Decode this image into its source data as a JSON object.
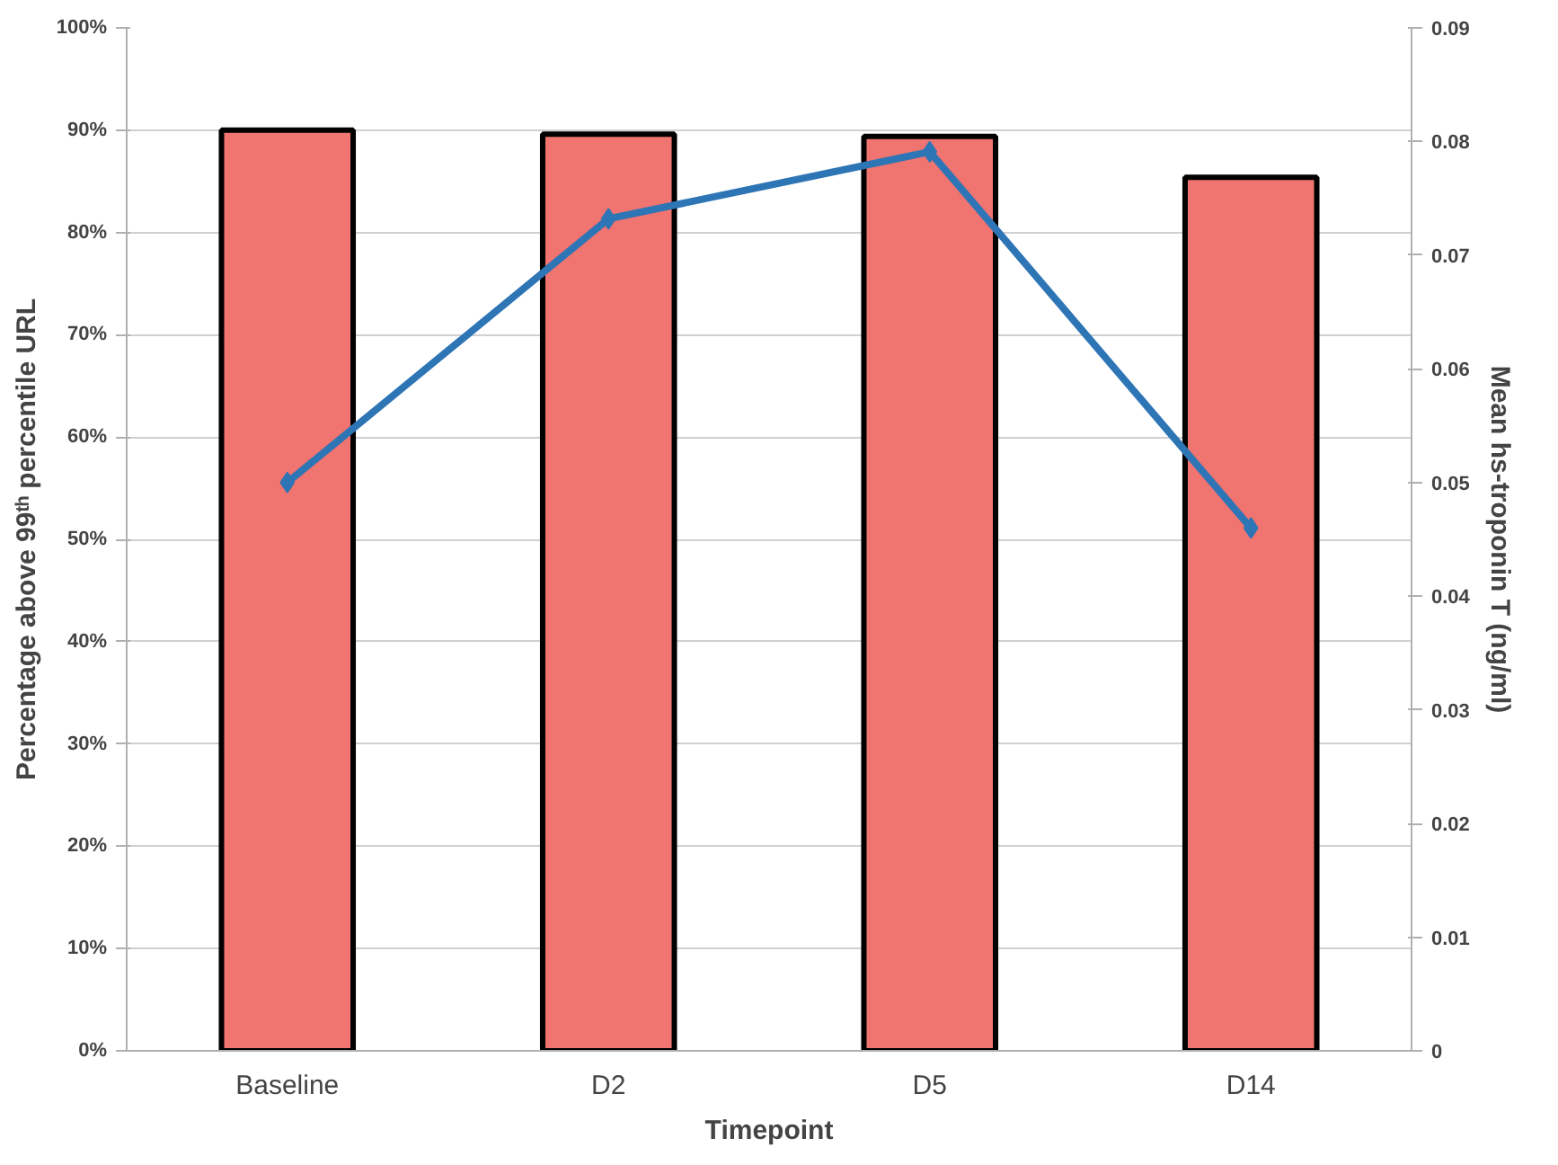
{
  "chart_data": {
    "type": "bar",
    "xlabel": "Timepoint",
    "ylabel": "Percentage above 99ᵗʰ percentile URL",
    "y2label": "Mean hs-troponin T (ng/ml)",
    "categories": [
      "Baseline",
      "D2",
      "D5",
      "D14"
    ],
    "series": [
      {
        "color": "#f07470",
        "values": [
          90.0,
          89.6,
          89.4,
          85.4
        ]
      },
      {
        "type": "line",
        "axis": "y2",
        "color": "#2e75b6",
        "marker": "diamond",
        "values": [
          0.05,
          0.0732,
          0.0791,
          0.046
        ]
      }
    ],
    "ylim": [
      0,
      100
    ],
    "yticks": [
      {
        "value": 0,
        "label": "0%"
      },
      {
        "value": 10,
        "label": "10%"
      },
      {
        "value": 20,
        "label": "20%"
      },
      {
        "value": 30,
        "label": "30%"
      },
      {
        "value": 40,
        "label": "40%"
      },
      {
        "value": 50,
        "label": "50%"
      },
      {
        "value": 60,
        "label": "60%"
      },
      {
        "value": 70,
        "label": "70%"
      },
      {
        "value": 80,
        "label": "80%"
      },
      {
        "value": 90,
        "label": "90%"
      },
      {
        "value": 100,
        "label": "100%"
      }
    ],
    "y2lim": [
      0,
      0.09
    ],
    "y2ticks": [
      {
        "value": 0,
        "label": "0"
      },
      0.01,
      0.02,
      0.03,
      0.04,
      0.05,
      0.06,
      0.07,
      0.08,
      0.09
    ],
    "grid": "y"
  }
}
